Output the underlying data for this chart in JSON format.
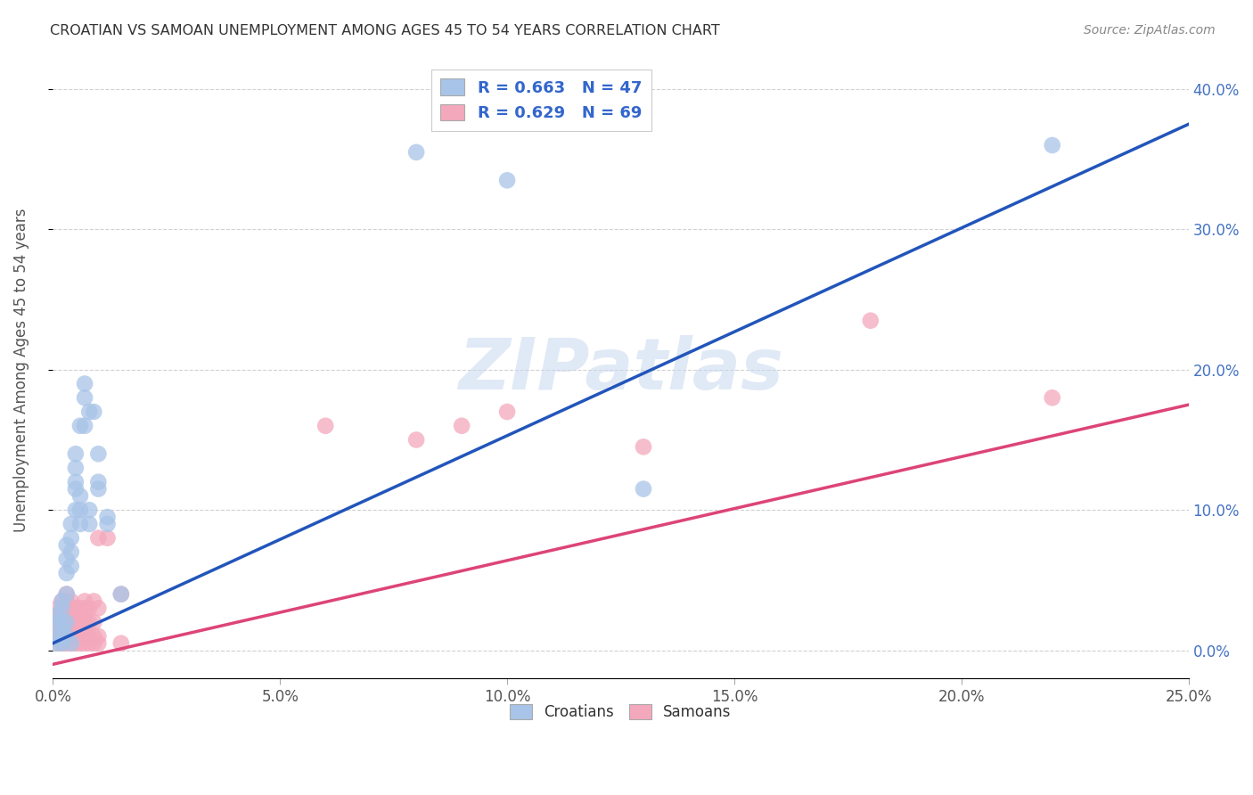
{
  "title": "CROATIAN VS SAMOAN UNEMPLOYMENT AMONG AGES 45 TO 54 YEARS CORRELATION CHART",
  "source": "Source: ZipAtlas.com",
  "ylabel": "Unemployment Among Ages 45 to 54 years",
  "xlim": [
    0.0,
    0.25
  ],
  "ylim": [
    -0.02,
    0.42
  ],
  "yticks": [
    0.0,
    0.1,
    0.2,
    0.3,
    0.4
  ],
  "xticks": [
    0.0,
    0.05,
    0.1,
    0.15,
    0.2,
    0.25
  ],
  "croatian_color": "#a8c4e8",
  "samoan_color": "#f4a8bc",
  "croatian_line_color": "#2255bb",
  "samoan_line_color": "#dd4477",
  "background_color": "#ffffff",
  "watermark": "ZIPatlas",
  "croatian_points": [
    [
      0.001,
      0.005
    ],
    [
      0.001,
      0.01
    ],
    [
      0.001,
      0.02
    ],
    [
      0.001,
      0.025
    ],
    [
      0.002,
      0.005
    ],
    [
      0.002,
      0.01
    ],
    [
      0.002,
      0.015
    ],
    [
      0.002,
      0.02
    ],
    [
      0.002,
      0.03
    ],
    [
      0.002,
      0.035
    ],
    [
      0.003,
      0.01
    ],
    [
      0.003,
      0.02
    ],
    [
      0.003,
      0.04
    ],
    [
      0.003,
      0.055
    ],
    [
      0.003,
      0.065
    ],
    [
      0.003,
      0.075
    ],
    [
      0.004,
      0.005
    ],
    [
      0.004,
      0.06
    ],
    [
      0.004,
      0.07
    ],
    [
      0.004,
      0.08
    ],
    [
      0.004,
      0.09
    ],
    [
      0.005,
      0.1
    ],
    [
      0.005,
      0.115
    ],
    [
      0.005,
      0.12
    ],
    [
      0.005,
      0.13
    ],
    [
      0.005,
      0.14
    ],
    [
      0.006,
      0.09
    ],
    [
      0.006,
      0.1
    ],
    [
      0.006,
      0.11
    ],
    [
      0.006,
      0.16
    ],
    [
      0.007,
      0.16
    ],
    [
      0.007,
      0.18
    ],
    [
      0.007,
      0.19
    ],
    [
      0.008,
      0.09
    ],
    [
      0.008,
      0.1
    ],
    [
      0.008,
      0.17
    ],
    [
      0.009,
      0.17
    ],
    [
      0.01,
      0.115
    ],
    [
      0.01,
      0.12
    ],
    [
      0.01,
      0.14
    ],
    [
      0.012,
      0.09
    ],
    [
      0.012,
      0.095
    ],
    [
      0.015,
      0.04
    ],
    [
      0.08,
      0.355
    ],
    [
      0.1,
      0.335
    ],
    [
      0.13,
      0.115
    ],
    [
      0.22,
      0.36
    ]
  ],
  "samoan_points": [
    [
      0.001,
      0.005
    ],
    [
      0.001,
      0.01
    ],
    [
      0.001,
      0.015
    ],
    [
      0.001,
      0.02
    ],
    [
      0.001,
      0.025
    ],
    [
      0.001,
      0.03
    ],
    [
      0.002,
      0.005
    ],
    [
      0.002,
      0.01
    ],
    [
      0.002,
      0.015
    ],
    [
      0.002,
      0.02
    ],
    [
      0.002,
      0.025
    ],
    [
      0.002,
      0.03
    ],
    [
      0.002,
      0.035
    ],
    [
      0.003,
      0.005
    ],
    [
      0.003,
      0.01
    ],
    [
      0.003,
      0.015
    ],
    [
      0.003,
      0.02
    ],
    [
      0.003,
      0.025
    ],
    [
      0.003,
      0.03
    ],
    [
      0.003,
      0.035
    ],
    [
      0.003,
      0.04
    ],
    [
      0.004,
      0.005
    ],
    [
      0.004,
      0.01
    ],
    [
      0.004,
      0.015
    ],
    [
      0.004,
      0.02
    ],
    [
      0.004,
      0.025
    ],
    [
      0.004,
      0.03
    ],
    [
      0.004,
      0.035
    ],
    [
      0.005,
      0.005
    ],
    [
      0.005,
      0.01
    ],
    [
      0.005,
      0.015
    ],
    [
      0.005,
      0.02
    ],
    [
      0.005,
      0.025
    ],
    [
      0.005,
      0.03
    ],
    [
      0.006,
      0.005
    ],
    [
      0.006,
      0.01
    ],
    [
      0.006,
      0.015
    ],
    [
      0.006,
      0.02
    ],
    [
      0.006,
      0.025
    ],
    [
      0.006,
      0.03
    ],
    [
      0.007,
      0.005
    ],
    [
      0.007,
      0.01
    ],
    [
      0.007,
      0.015
    ],
    [
      0.007,
      0.02
    ],
    [
      0.007,
      0.025
    ],
    [
      0.007,
      0.03
    ],
    [
      0.007,
      0.035
    ],
    [
      0.008,
      0.005
    ],
    [
      0.008,
      0.01
    ],
    [
      0.008,
      0.02
    ],
    [
      0.008,
      0.03
    ],
    [
      0.009,
      0.005
    ],
    [
      0.009,
      0.01
    ],
    [
      0.009,
      0.02
    ],
    [
      0.009,
      0.035
    ],
    [
      0.01,
      0.005
    ],
    [
      0.01,
      0.01
    ],
    [
      0.01,
      0.03
    ],
    [
      0.01,
      0.08
    ],
    [
      0.012,
      0.08
    ],
    [
      0.015,
      0.005
    ],
    [
      0.015,
      0.04
    ],
    [
      0.06,
      0.16
    ],
    [
      0.08,
      0.15
    ],
    [
      0.09,
      0.16
    ],
    [
      0.1,
      0.17
    ],
    [
      0.13,
      0.145
    ],
    [
      0.18,
      0.235
    ],
    [
      0.22,
      0.18
    ]
  ],
  "croatian_line": [
    [
      0.0,
      0.005
    ],
    [
      0.25,
      0.375
    ]
  ],
  "samoan_line": [
    [
      0.0,
      -0.01
    ],
    [
      0.25,
      0.175
    ]
  ]
}
